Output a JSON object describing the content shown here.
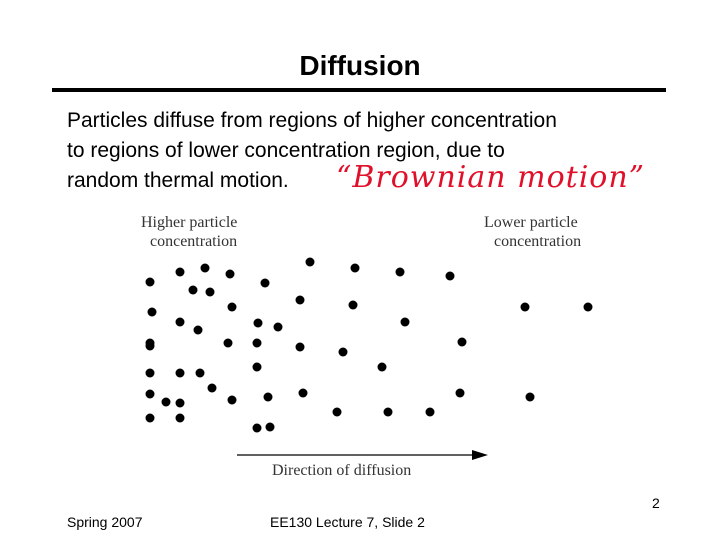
{
  "header": {
    "title": "Diffusion"
  },
  "body": {
    "lines": [
      "Particles diffuse from regions of higher concentration",
      "to regions of lower concentration region, due to",
      "random thermal motion."
    ],
    "annotation": "“Brownian motion”"
  },
  "figure": {
    "left_label": [
      "Higher particle",
      "concentration"
    ],
    "right_label": [
      "Lower particle",
      "concentration"
    ],
    "arrow_label": "Direction of diffusion"
  },
  "footer": {
    "left": "Spring 2007",
    "center": "EE130 Lecture 7, Slide 2",
    "page": "2"
  }
}
